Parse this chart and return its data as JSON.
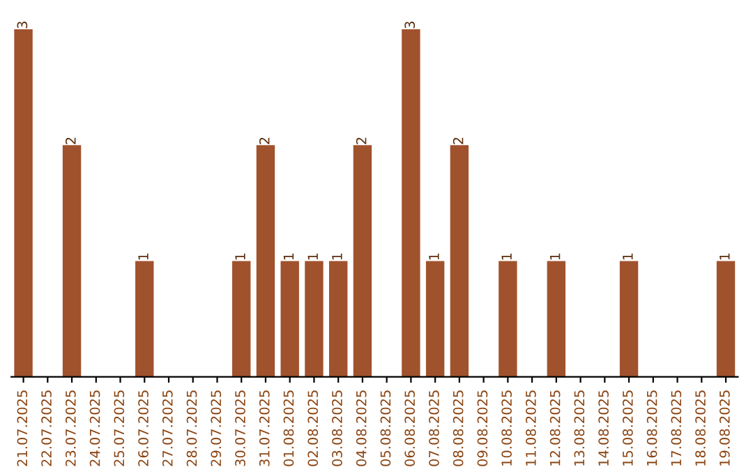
{
  "chart_data": {
    "type": "bar",
    "categories": [
      "21.07.2025",
      "22.07.2025",
      "23.07.2025",
      "24.07.2025",
      "25.07.2025",
      "26.07.2025",
      "27.07.2025",
      "28.07.2025",
      "29.07.2025",
      "30.07.2025",
      "31.07.2025",
      "01.08.2025",
      "02.08.2025",
      "03.08.2025",
      "04.08.2025",
      "05.08.2025",
      "06.08.2025",
      "07.08.2025",
      "08.08.2025",
      "09.08.2025",
      "10.08.2025",
      "11.08.2025",
      "12.08.2025",
      "13.08.2025",
      "14.08.2025",
      "15.08.2025",
      "16.08.2025",
      "17.08.2025",
      "18.08.2025",
      "19.08.2025"
    ],
    "values": [
      3,
      0,
      2,
      0,
      0,
      1,
      0,
      0,
      0,
      1,
      2,
      1,
      1,
      1,
      2,
      0,
      3,
      1,
      2,
      0,
      1,
      0,
      1,
      0,
      0,
      1,
      0,
      0,
      0,
      1
    ],
    "value_labels": [
      "3",
      null,
      "2",
      null,
      null,
      "1",
      null,
      null,
      null,
      "1",
      "2",
      "1",
      "1",
      "1",
      "2",
      null,
      "3",
      "1",
      "2",
      null,
      "1",
      null,
      "1",
      null,
      null,
      "1",
      null,
      null,
      null,
      "1"
    ],
    "color": "#a0522d",
    "tick_labels": "x",
    "grid": false,
    "legend": false
  }
}
